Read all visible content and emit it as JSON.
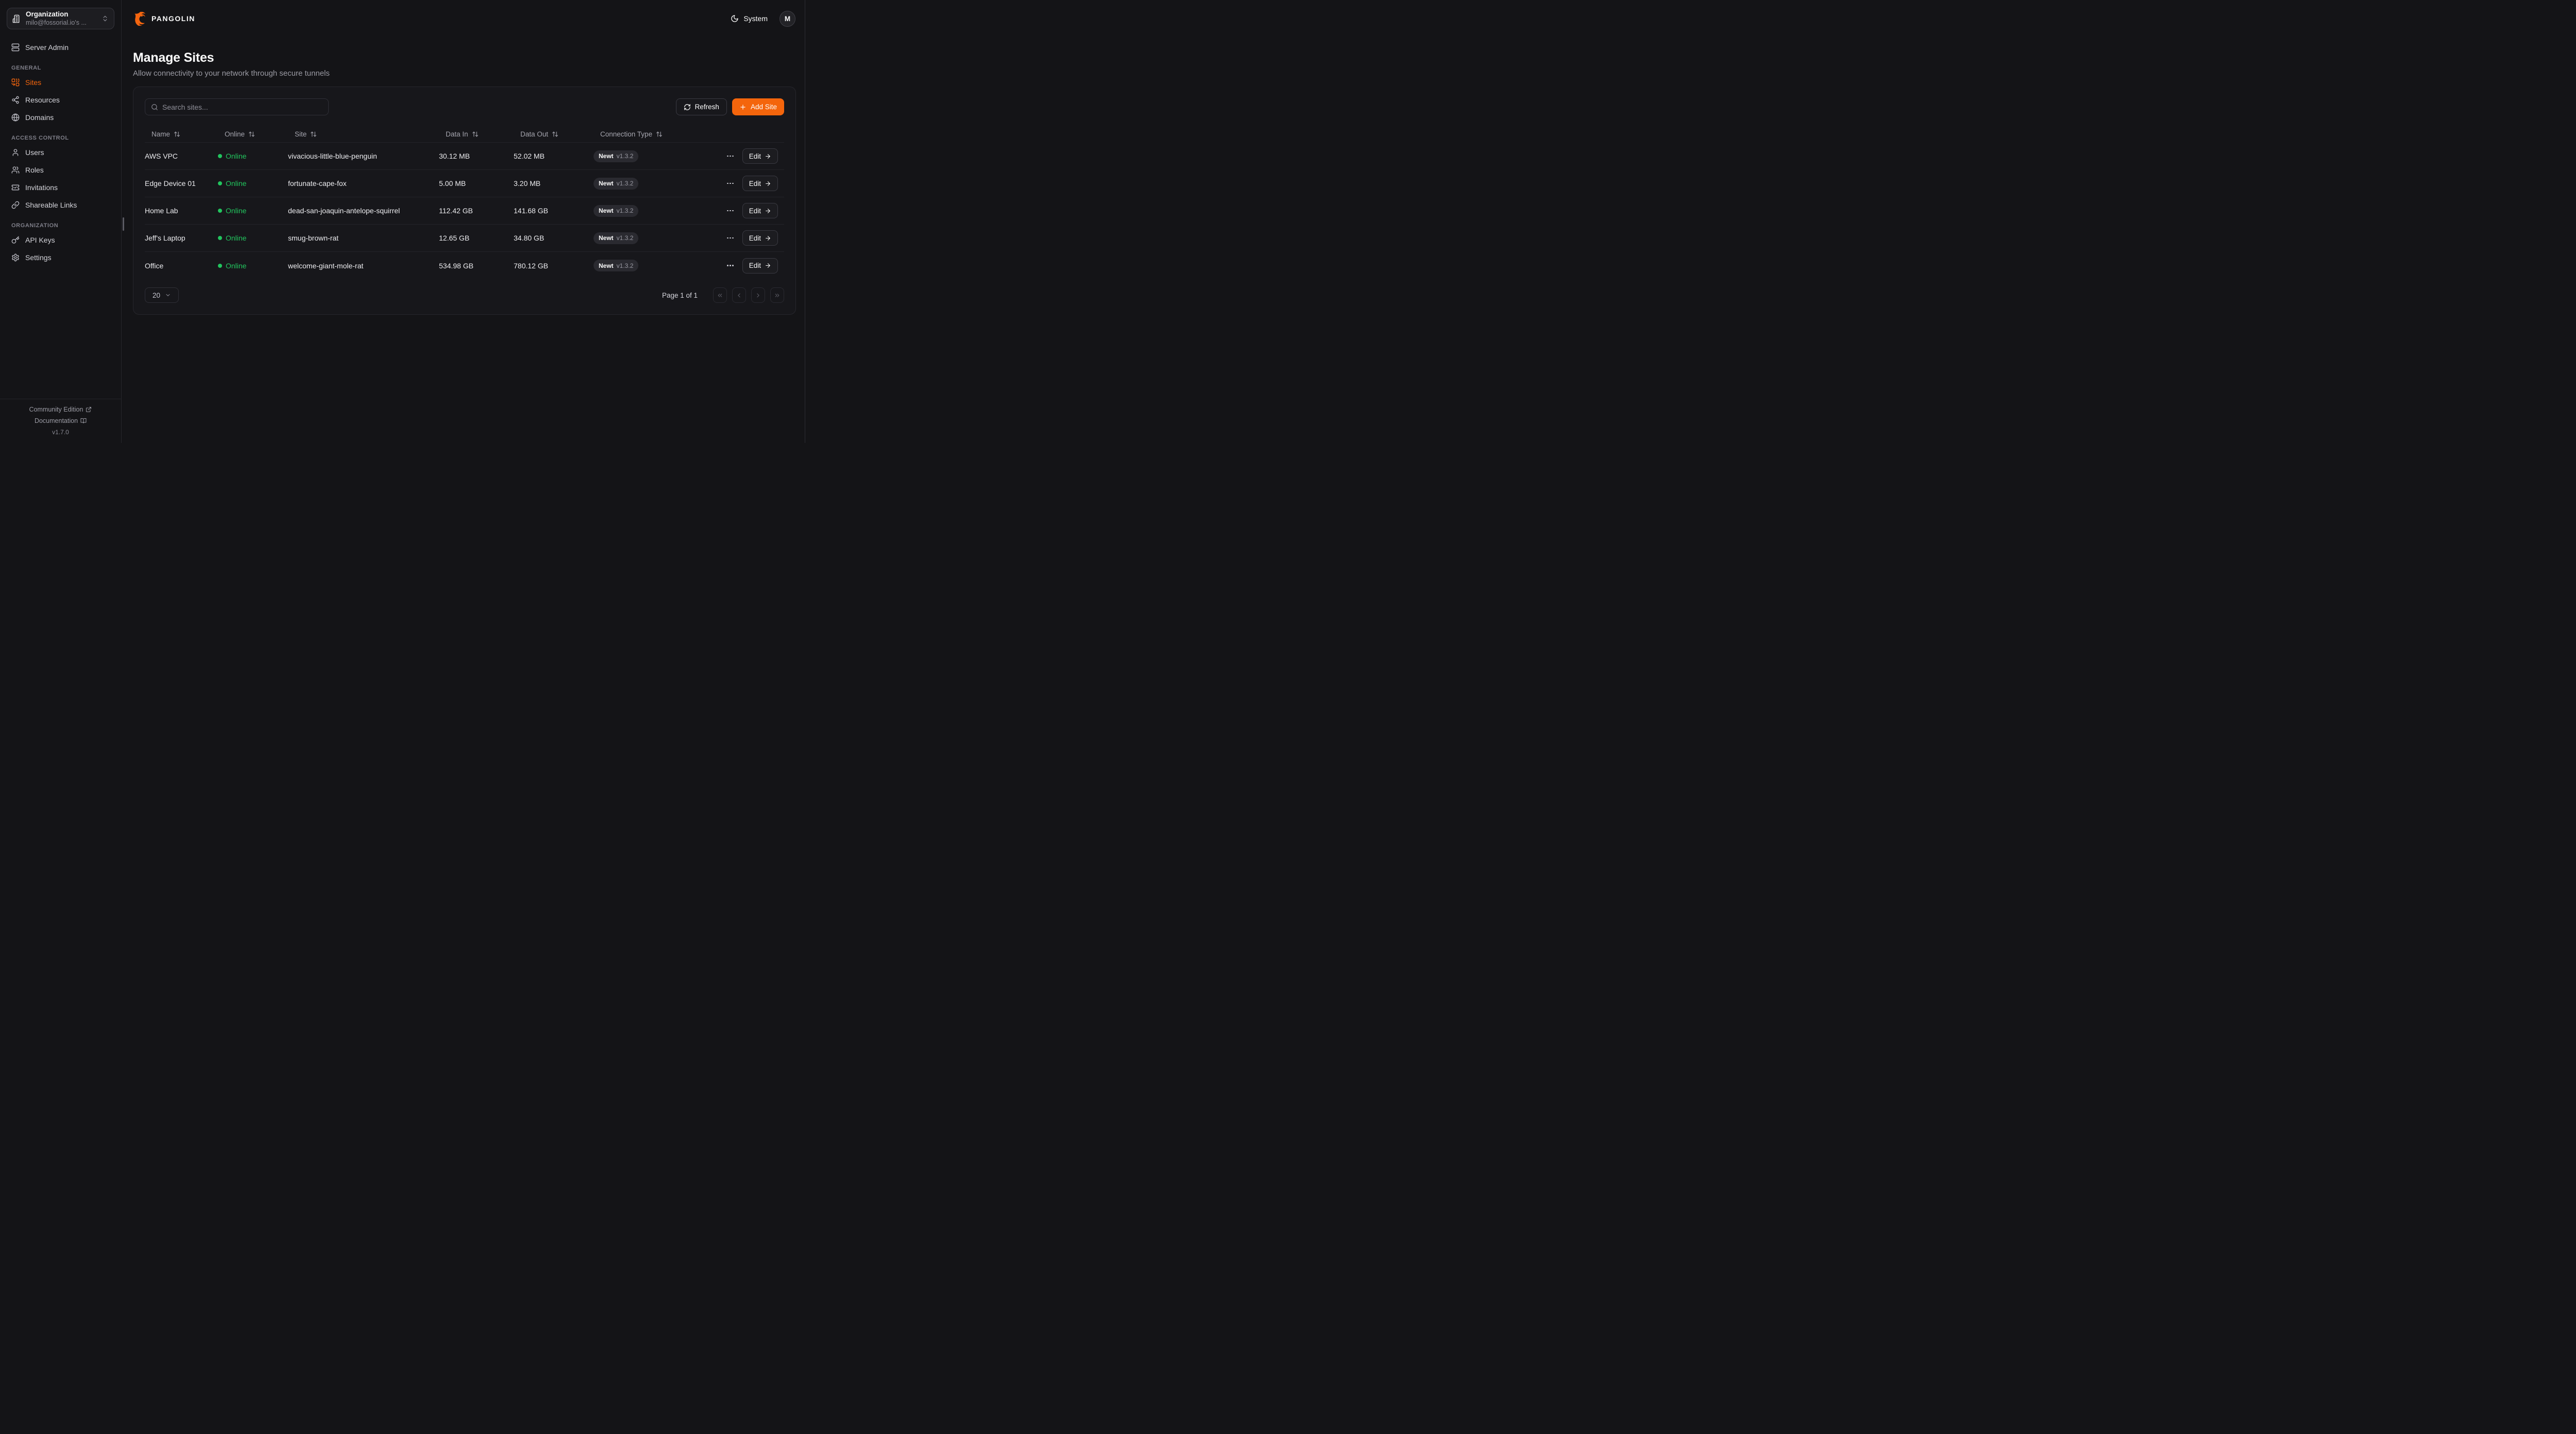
{
  "org_selector": {
    "title": "Organization",
    "subtitle": "milo@fossorial.io's ..."
  },
  "sidebar": {
    "server_admin_label": "Server Admin",
    "sections": [
      {
        "label": "GENERAL",
        "items": [
          {
            "label": "Sites"
          },
          {
            "label": "Resources"
          },
          {
            "label": "Domains"
          }
        ]
      },
      {
        "label": "ACCESS CONTROL",
        "items": [
          {
            "label": "Users"
          },
          {
            "label": "Roles"
          },
          {
            "label": "Invitations"
          },
          {
            "label": "Shareable Links"
          }
        ]
      },
      {
        "label": "ORGANIZATION",
        "items": [
          {
            "label": "API Keys"
          },
          {
            "label": "Settings"
          }
        ]
      }
    ],
    "footer": {
      "community": "Community Edition",
      "documentation": "Documentation",
      "version": "v1.7.0"
    }
  },
  "header": {
    "brand": "PANGOLIN",
    "theme_label": "System",
    "avatar_initial": "M"
  },
  "page": {
    "title": "Manage Sites",
    "subtitle": "Allow connectivity to your network through secure tunnels"
  },
  "toolbar": {
    "search_placeholder": "Search sites...",
    "refresh_label": "Refresh",
    "add_site_label": "Add Site"
  },
  "table": {
    "columns": [
      "Name",
      "Online",
      "Site",
      "Data In",
      "Data Out",
      "Connection Type"
    ],
    "rows": [
      {
        "name": "AWS VPC",
        "status": "Online",
        "site": "vivacious-little-blue-penguin",
        "data_in": "30.12 MB",
        "data_out": "52.02 MB",
        "conn": "Newt",
        "version": "v1.3.2",
        "edit_label": "Edit"
      },
      {
        "name": "Edge Device 01",
        "status": "Online",
        "site": "fortunate-cape-fox",
        "data_in": "5.00 MB",
        "data_out": "3.20 MB",
        "conn": "Newt",
        "version": "v1.3.2",
        "edit_label": "Edit"
      },
      {
        "name": "Home Lab",
        "status": "Online",
        "site": "dead-san-joaquin-antelope-squirrel",
        "data_in": "112.42 GB",
        "data_out": "141.68 GB",
        "conn": "Newt",
        "version": "v1.3.2",
        "edit_label": "Edit"
      },
      {
        "name": "Jeff's Laptop",
        "status": "Online",
        "site": "smug-brown-rat",
        "data_in": "12.65 GB",
        "data_out": "34.80 GB",
        "conn": "Newt",
        "version": "v1.3.2",
        "edit_label": "Edit"
      },
      {
        "name": "Office",
        "status": "Online",
        "site": "welcome-giant-mole-rat",
        "data_in": "534.98 GB",
        "data_out": "780.12 GB",
        "conn": "Newt",
        "version": "v1.3.2",
        "edit_label": "Edit"
      }
    ]
  },
  "pagination": {
    "page_size": "20",
    "page_info": "Page 1 of 1"
  },
  "colors": {
    "accent": "#f4650c",
    "online_green": "#22c55e",
    "background": "#141417",
    "card": "#17171b"
  }
}
